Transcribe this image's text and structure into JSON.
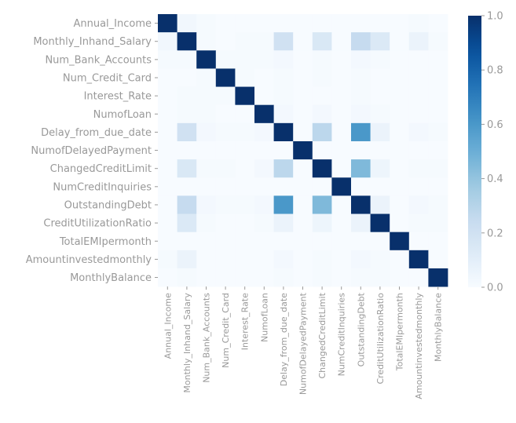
{
  "chart_data": {
    "type": "heatmap",
    "title": "",
    "xlabel": "",
    "ylabel": "",
    "labels": [
      "Annual_Income",
      "Monthly_Inhand_Salary",
      "Num_Bank_Accounts",
      "Num_Credit_Card",
      "Interest_Rate",
      "NumofLoan",
      "Delay_from_due_date",
      "NumofDelayedPayment",
      "ChangedCreditLimit",
      "NumCreditInquiries",
      "OutstandingDebt",
      "CreditUtilizationRatio",
      "TotalEMIpermonth",
      "Amountinvestedmonthly",
      "MonthlyBalance"
    ],
    "matrix": [
      [
        1.0,
        0.03,
        0.01,
        0.0,
        0.0,
        0.0,
        0.0,
        0.0,
        0.0,
        0.0,
        0.0,
        0.0,
        0.0,
        0.01,
        0.0
      ],
      [
        0.03,
        1.0,
        0.01,
        0.0,
        0.01,
        0.01,
        0.2,
        0.0,
        0.15,
        0.0,
        0.25,
        0.14,
        0.0,
        0.06,
        0.01
      ],
      [
        0.01,
        0.01,
        1.0,
        0.01,
        0.01,
        0.01,
        0.02,
        0.0,
        0.01,
        0.0,
        0.02,
        0.01,
        0.0,
        0.0,
        0.0
      ],
      [
        0.0,
        0.0,
        0.01,
        1.0,
        0.01,
        0.0,
        0.01,
        0.0,
        0.01,
        0.0,
        0.01,
        0.0,
        0.0,
        0.0,
        0.0
      ],
      [
        0.0,
        0.01,
        0.01,
        0.01,
        1.0,
        0.0,
        0.01,
        0.0,
        0.0,
        0.0,
        0.01,
        0.0,
        0.0,
        0.0,
        0.0
      ],
      [
        0.0,
        0.01,
        0.01,
        0.0,
        0.0,
        1.0,
        0.02,
        0.0,
        0.02,
        0.0,
        0.02,
        0.01,
        0.0,
        0.0,
        0.0
      ],
      [
        0.0,
        0.2,
        0.02,
        0.01,
        0.01,
        0.02,
        1.0,
        0.0,
        0.28,
        0.0,
        0.6,
        0.06,
        0.0,
        0.02,
        0.01
      ],
      [
        0.0,
        0.0,
        0.0,
        0.0,
        0.0,
        0.0,
        0.0,
        1.0,
        0.0,
        0.0,
        0.0,
        0.0,
        0.0,
        0.0,
        0.0
      ],
      [
        0.0,
        0.15,
        0.01,
        0.01,
        0.0,
        0.02,
        0.28,
        0.0,
        1.0,
        0.0,
        0.45,
        0.05,
        0.0,
        0.01,
        0.01
      ],
      [
        0.0,
        0.0,
        0.0,
        0.0,
        0.0,
        0.0,
        0.0,
        0.0,
        0.0,
        1.0,
        0.0,
        0.0,
        0.0,
        0.0,
        0.0
      ],
      [
        0.0,
        0.25,
        0.02,
        0.01,
        0.01,
        0.02,
        0.6,
        0.0,
        0.45,
        0.0,
        1.0,
        0.06,
        0.0,
        0.02,
        0.01
      ],
      [
        0.0,
        0.14,
        0.01,
        0.0,
        0.0,
        0.01,
        0.06,
        0.0,
        0.05,
        0.0,
        0.06,
        1.0,
        0.0,
        0.01,
        0.01
      ],
      [
        0.0,
        0.0,
        0.0,
        0.0,
        0.0,
        0.0,
        0.0,
        0.0,
        0.0,
        0.0,
        0.0,
        0.0,
        1.0,
        0.0,
        0.0
      ],
      [
        0.01,
        0.06,
        0.0,
        0.0,
        0.0,
        0.0,
        0.02,
        0.0,
        0.01,
        0.0,
        0.02,
        0.01,
        0.0,
        1.0,
        0.0
      ],
      [
        0.0,
        0.01,
        0.0,
        0.0,
        0.0,
        0.0,
        0.01,
        0.0,
        0.01,
        0.0,
        0.01,
        0.01,
        0.0,
        0.0,
        1.0
      ]
    ],
    "colorbar": {
      "range": [
        0.0,
        1.0
      ],
      "ticks": [
        "0.0",
        "0.2",
        "0.4",
        "0.6",
        "0.8",
        "1.0"
      ],
      "colormap": "Blues",
      "color_low": "#f7fbff",
      "color_high": "#08306b"
    },
    "grid": false,
    "legend": "colorbar-right"
  }
}
